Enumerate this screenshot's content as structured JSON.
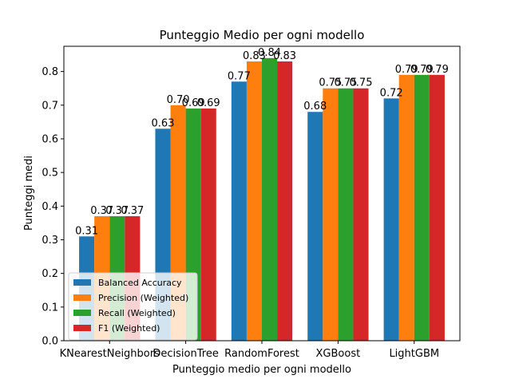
{
  "chart_data": {
    "type": "bar",
    "title": "Punteggio Medio per ogni modello",
    "xlabel": "Punteggio medio per ogni modello",
    "ylabel": "Punteggi medi",
    "ylim": [
      0,
      0.875
    ],
    "yticks": [
      "0.0",
      "0.1",
      "0.2",
      "0.3",
      "0.4",
      "0.5",
      "0.6",
      "0.7",
      "0.8"
    ],
    "categories": [
      "KNearestNeighbors",
      "DecisionTree",
      "RandomForest",
      "XGBoost",
      "LightGBM"
    ],
    "series": [
      {
        "name": "Balanced Accuracy",
        "color": "#1f77b4",
        "values": [
          0.31,
          0.63,
          0.77,
          0.68,
          0.72
        ],
        "labels": [
          "0.31",
          "0.63",
          "0.77",
          "0.68",
          "0.72"
        ]
      },
      {
        "name": "Precision (Weighted)",
        "color": "#ff7f0e",
        "values": [
          0.37,
          0.7,
          0.83,
          0.75,
          0.79
        ],
        "labels": [
          "0.37",
          "0.70",
          "0.83",
          "0.75",
          "0.79"
        ]
      },
      {
        "name": "Recall (Weighted)",
        "color": "#2ca02c",
        "values": [
          0.37,
          0.69,
          0.84,
          0.75,
          0.79
        ],
        "labels": [
          "0.37",
          "0.69",
          "0.84",
          "0.75",
          "0.79"
        ]
      },
      {
        "name": "F1 (Weighted)",
        "color": "#d62728",
        "values": [
          0.37,
          0.69,
          0.83,
          0.75,
          0.79
        ],
        "labels": [
          "0.37",
          "0.69",
          "0.83",
          "0.75",
          "0.79"
        ]
      }
    ],
    "legend_position": "lower-left",
    "grid": false
  }
}
